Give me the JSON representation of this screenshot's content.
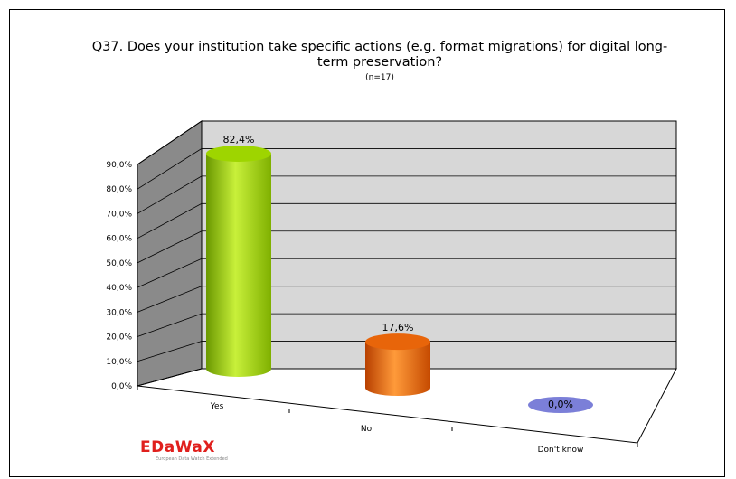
{
  "chart_data": {
    "type": "bar",
    "title": "Q37. Does your institution take specific actions (e.g. format migrations) for digital long-term preservation?",
    "subtitle": "(n=17)",
    "categories": [
      "Yes",
      "No",
      "Don't know"
    ],
    "values": [
      82.4,
      17.6,
      0.0
    ],
    "data_labels": [
      "82,4%",
      "17,6%",
      "0,0%"
    ],
    "ylim": [
      0,
      90
    ],
    "y_ticks": [
      "0,0%",
      "10,0%",
      "20,0%",
      "30,0%",
      "40,0%",
      "50,0%",
      "60,0%",
      "70,0%",
      "80,0%",
      "90,0%"
    ],
    "grid": true,
    "bar_shape": "cylinder",
    "colors": [
      "#9ed500",
      "#e8650a",
      "#7b7fd8"
    ],
    "wall_color": "#d7d7d7"
  },
  "logo": {
    "text": "EDaWaX",
    "tagline": "European Data Watch Extended"
  }
}
